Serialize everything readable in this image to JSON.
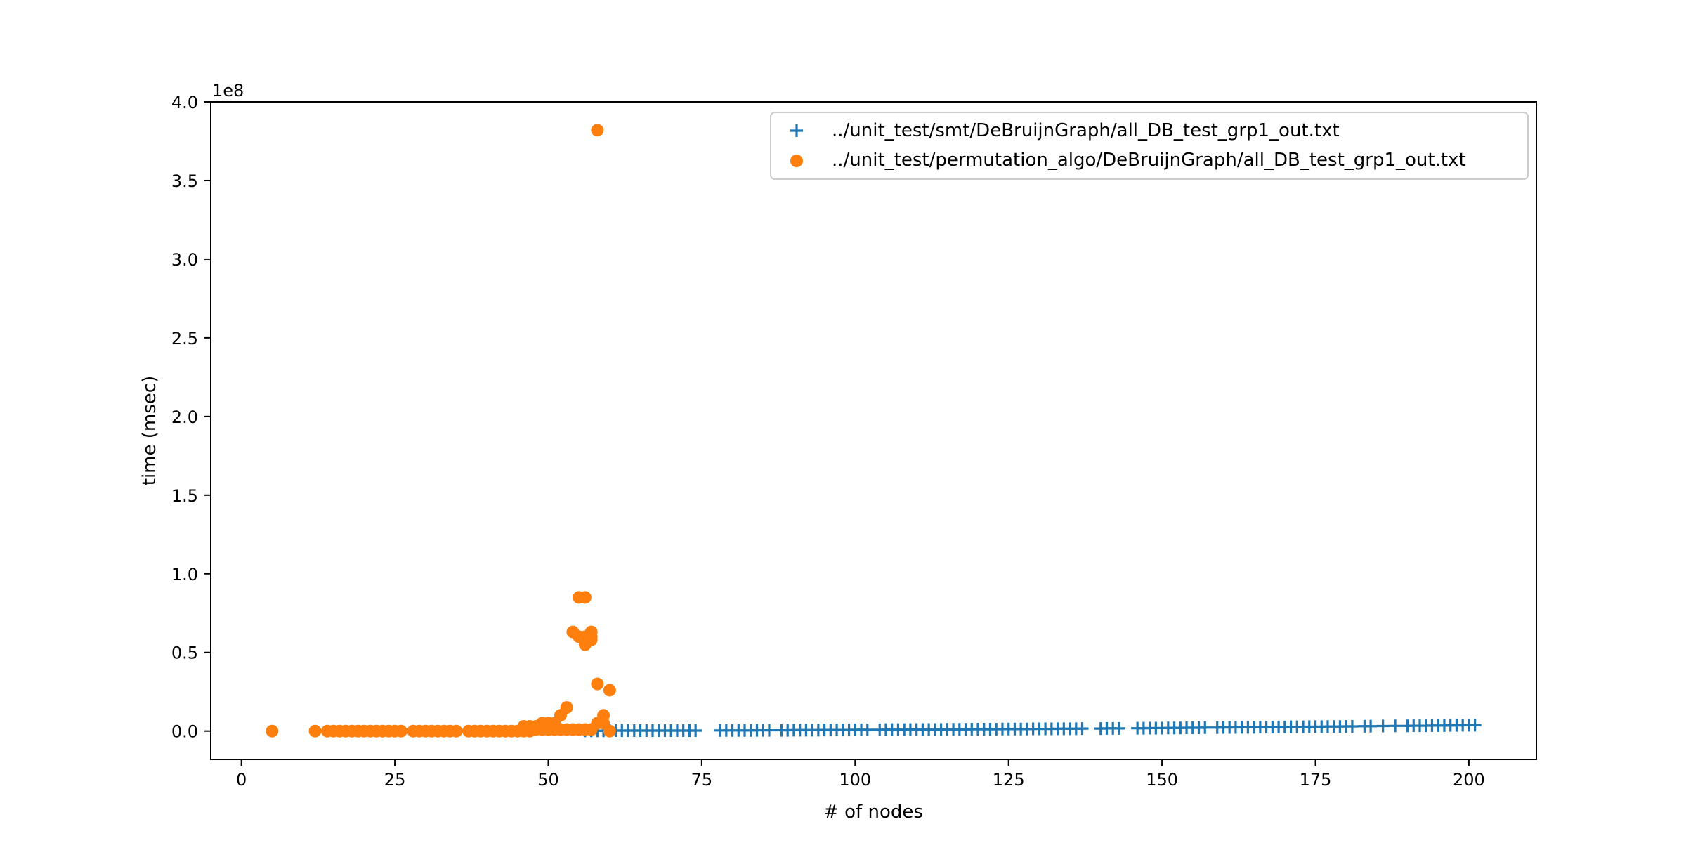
{
  "chart_data": {
    "type": "scatter",
    "title": "",
    "xlabel": "# of nodes",
    "ylabel": "time (msec)",
    "y_offset_label": "1e8",
    "xlim": [
      -5,
      211
    ],
    "ylim": [
      -0.18,
      4.0
    ],
    "y_unit_multiplier": 100000000,
    "x_ticks": [
      0,
      25,
      50,
      75,
      100,
      125,
      150,
      175,
      200
    ],
    "x_tick_labels": [
      "0",
      "25",
      "50",
      "75",
      "100",
      "125",
      "150",
      "175",
      "200"
    ],
    "y_ticks": [
      0.0,
      0.5,
      1.0,
      1.5,
      2.0,
      2.5,
      3.0,
      3.5,
      4.0
    ],
    "y_tick_labels": [
      "0.0",
      "0.5",
      "1.0",
      "1.5",
      "2.0",
      "2.5",
      "3.0",
      "3.5",
      "4.0"
    ],
    "grid": false,
    "legend_position": "top-right",
    "series": [
      {
        "name": "../unit_test/smt/DeBruijnGraph/all_DB_test_grp1_out.txt",
        "marker": "plus",
        "color": "#1f77b4",
        "x": [
          56,
          57,
          58,
          59,
          60,
          61,
          62,
          63,
          64,
          65,
          66,
          67,
          68,
          69,
          70,
          71,
          72,
          73,
          74,
          78,
          79,
          80,
          81,
          82,
          83,
          84,
          85,
          86,
          88,
          89,
          90,
          91,
          92,
          93,
          94,
          95,
          96,
          97,
          98,
          99,
          100,
          101,
          102,
          104,
          105,
          106,
          107,
          108,
          109,
          110,
          111,
          112,
          113,
          114,
          115,
          116,
          117,
          118,
          119,
          120,
          121,
          122,
          123,
          124,
          125,
          126,
          127,
          128,
          129,
          130,
          131,
          132,
          133,
          134,
          135,
          136,
          137,
          140,
          141,
          142,
          143,
          146,
          147,
          148,
          149,
          150,
          151,
          152,
          153,
          154,
          155,
          156,
          157,
          159,
          160,
          161,
          162,
          163,
          164,
          165,
          166,
          167,
          168,
          169,
          170,
          171,
          172,
          173,
          174,
          175,
          176,
          177,
          178,
          179,
          180,
          181,
          183,
          184,
          186,
          188,
          190,
          191,
          192,
          193,
          194,
          195,
          196,
          197,
          198,
          199,
          200,
          201
        ],
        "y": [
          0.002,
          0.002,
          0.002,
          0.002,
          0.003,
          0.003,
          0.003,
          0.003,
          0.003,
          0.003,
          0.003,
          0.003,
          0.003,
          0.003,
          0.003,
          0.003,
          0.003,
          0.003,
          0.003,
          0.004,
          0.004,
          0.004,
          0.004,
          0.004,
          0.004,
          0.005,
          0.005,
          0.005,
          0.005,
          0.005,
          0.006,
          0.006,
          0.006,
          0.006,
          0.006,
          0.007,
          0.007,
          0.007,
          0.007,
          0.007,
          0.008,
          0.008,
          0.008,
          0.008,
          0.009,
          0.009,
          0.009,
          0.009,
          0.009,
          0.01,
          0.01,
          0.01,
          0.01,
          0.01,
          0.011,
          0.011,
          0.011,
          0.011,
          0.012,
          0.012,
          0.012,
          0.012,
          0.012,
          0.013,
          0.013,
          0.013,
          0.013,
          0.013,
          0.014,
          0.014,
          0.014,
          0.014,
          0.015,
          0.015,
          0.015,
          0.015,
          0.016,
          0.016,
          0.017,
          0.017,
          0.017,
          0.018,
          0.018,
          0.019,
          0.019,
          0.019,
          0.02,
          0.02,
          0.02,
          0.021,
          0.021,
          0.021,
          0.022,
          0.022,
          0.023,
          0.023,
          0.023,
          0.024,
          0.024,
          0.024,
          0.025,
          0.025,
          0.025,
          0.026,
          0.026,
          0.027,
          0.027,
          0.027,
          0.028,
          0.028,
          0.028,
          0.029,
          0.029,
          0.029,
          0.03,
          0.03,
          0.031,
          0.031,
          0.032,
          0.033,
          0.033,
          0.034,
          0.034,
          0.034,
          0.035,
          0.035,
          0.035,
          0.036,
          0.036,
          0.037,
          0.037,
          0.037
        ]
      },
      {
        "name": "../unit_test/permutation_algo/DeBruijnGraph/all_DB_test_grp1_out.txt",
        "marker": "circle",
        "color": "#ff7f0e",
        "x": [
          5,
          12,
          14,
          15,
          16,
          17,
          18,
          19,
          20,
          21,
          22,
          23,
          24,
          25,
          26,
          28,
          29,
          30,
          31,
          32,
          33,
          34,
          35,
          37,
          38,
          39,
          40,
          41,
          42,
          43,
          44,
          45,
          46,
          46,
          47,
          47,
          48,
          48,
          49,
          49,
          50,
          50,
          51,
          51,
          52,
          52,
          53,
          53,
          54,
          54,
          55,
          55,
          55,
          56,
          56,
          56,
          56,
          57,
          57,
          57,
          57,
          58,
          58,
          58,
          59,
          59,
          60,
          60
        ],
        "y": [
          0.0,
          0.0,
          0.0,
          0.0,
          0.0,
          0.0,
          0.0,
          0.0,
          0.0,
          0.0,
          0.0,
          0.0,
          0.0,
          0.0,
          0.0,
          0.0,
          0.0,
          0.0,
          0.0,
          0.0,
          0.0,
          0.0,
          0.0,
          0.0,
          0.0,
          0.0,
          0.0,
          0.0,
          0.0,
          0.0,
          0.0,
          0.0,
          0.0,
          0.03,
          0.0,
          0.03,
          0.01,
          0.03,
          0.01,
          0.05,
          0.01,
          0.05,
          0.01,
          0.05,
          0.01,
          0.1,
          0.01,
          0.15,
          0.01,
          0.63,
          0.01,
          0.6,
          0.85,
          0.01,
          0.55,
          0.6,
          0.85,
          0.01,
          0.58,
          0.6,
          0.63,
          0.05,
          0.3,
          3.82,
          0.05,
          0.1,
          0.0,
          0.26
        ]
      }
    ]
  }
}
